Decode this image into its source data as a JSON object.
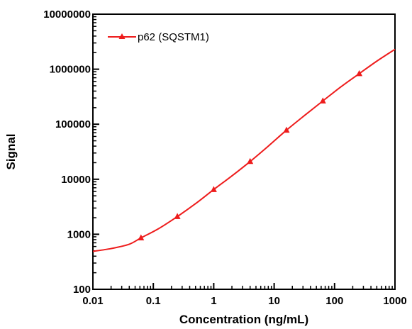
{
  "chart_data": {
    "type": "line",
    "xlabel": "Concentration (ng/mL)",
    "ylabel": "Signal",
    "xscale": "log",
    "yscale": "log",
    "xlim": [
      0.01,
      1000
    ],
    "ylim": [
      100,
      10000000
    ],
    "grid": false,
    "legend_position": "top-left",
    "x_tick_labels": [
      "0.01",
      "0.1",
      "1",
      "10",
      "100",
      "1000"
    ],
    "y_tick_labels": [
      "100",
      "1000",
      "10000",
      "100000",
      "1000000",
      "10000000"
    ],
    "series": [
      {
        "name": "p62 (SQSTM1)",
        "color": "#ee1c1c",
        "marker": "triangle",
        "points": [
          {
            "x": 0.0625,
            "y": 860
          },
          {
            "x": 0.25,
            "y": 2100
          },
          {
            "x": 1,
            "y": 6500
          },
          {
            "x": 4,
            "y": 21000
          },
          {
            "x": 16,
            "y": 78000
          },
          {
            "x": 64,
            "y": 265000
          },
          {
            "x": 256,
            "y": 830000
          }
        ],
        "fit_curve": [
          {
            "x": 0.01,
            "y": 490
          },
          {
            "x": 0.02,
            "y": 550
          },
          {
            "x": 0.04,
            "y": 660
          },
          {
            "x": 0.0625,
            "y": 860
          },
          {
            "x": 0.12,
            "y": 1250
          },
          {
            "x": 0.25,
            "y": 2100
          },
          {
            "x": 0.5,
            "y": 3600
          },
          {
            "x": 1,
            "y": 6500
          },
          {
            "x": 2,
            "y": 11500
          },
          {
            "x": 4,
            "y": 21000
          },
          {
            "x": 8,
            "y": 40000
          },
          {
            "x": 16,
            "y": 78000
          },
          {
            "x": 32,
            "y": 145000
          },
          {
            "x": 64,
            "y": 265000
          },
          {
            "x": 128,
            "y": 480000
          },
          {
            "x": 256,
            "y": 830000
          },
          {
            "x": 500,
            "y": 1400000
          },
          {
            "x": 1000,
            "y": 2300000
          }
        ]
      }
    ]
  }
}
